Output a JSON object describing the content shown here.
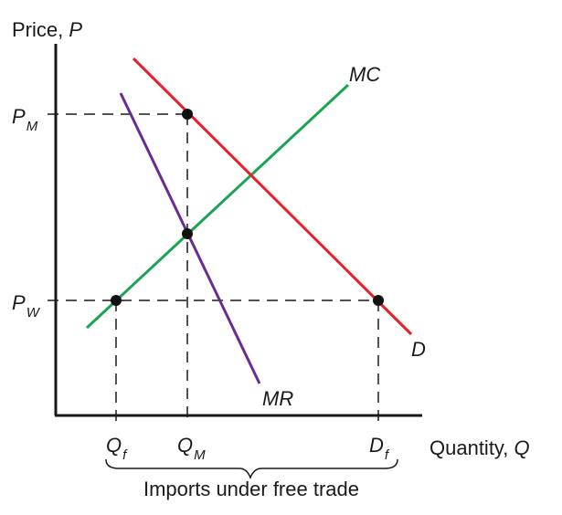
{
  "axes": {
    "y_label": "Price, ",
    "y_symbol": "P",
    "x_label": "Quantity, ",
    "x_symbol": "Q"
  },
  "price_levels": [
    {
      "id": "pm",
      "main": "P",
      "sub": "M"
    },
    {
      "id": "pw",
      "main": "P",
      "sub": "W"
    }
  ],
  "quantity_levels": [
    {
      "id": "qf",
      "main": "Q",
      "sub": "f"
    },
    {
      "id": "qm",
      "main": "Q",
      "sub": "M"
    },
    {
      "id": "df",
      "main": "D",
      "sub": "f"
    }
  ],
  "curves": {
    "mc": {
      "label": "MC",
      "color": "#1aa352"
    },
    "demand": {
      "label": "D",
      "color": "#e8202a"
    },
    "mr": {
      "label": "MR",
      "color": "#6a2c91"
    }
  },
  "brace_label": "Imports under free trade"
}
